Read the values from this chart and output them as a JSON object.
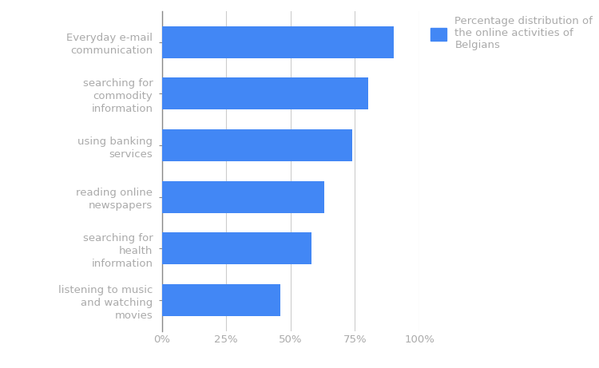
{
  "categories": [
    "listening to music\nand watching\nmovies",
    "searching for\nhealth\ninformation",
    "reading online\nnewspapers",
    "using banking\nservices",
    "searching for\ncommodity\ninformation",
    "Everyday e-mail\ncommunication"
  ],
  "values": [
    46,
    58,
    63,
    74,
    80,
    90
  ],
  "bar_color": "#4287f5",
  "background_color": "#ffffff",
  "grid_color": "#cccccc",
  "label_color": "#aaaaaa",
  "legend_label": "Percentage distribution of\nthe online activities of\nBelgians",
  "xlim": [
    0,
    100
  ],
  "xtick_values": [
    0,
    25,
    50,
    75,
    100
  ],
  "xtick_labels": [
    "0%",
    "25%",
    "50%",
    "75%",
    "100%"
  ],
  "bar_height": 0.62,
  "figsize": [
    7.5,
    4.61
  ],
  "dpi": 100,
  "label_fontsize": 9.5,
  "tick_fontsize": 9.5,
  "legend_fontsize": 9.5
}
